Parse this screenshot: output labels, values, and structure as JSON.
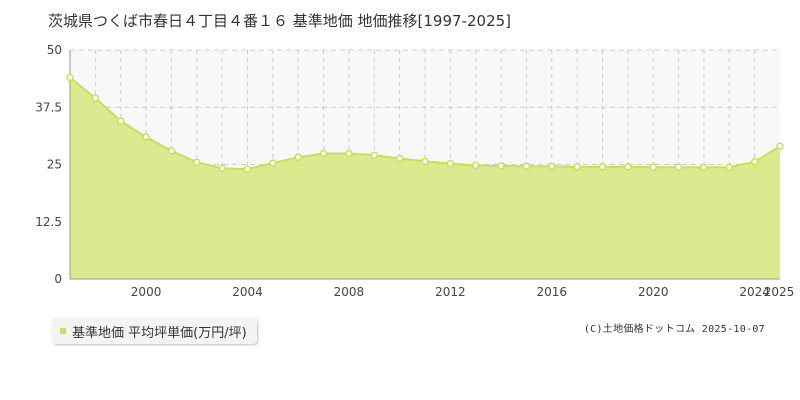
{
  "colors": {
    "fill": "#dbea8f",
    "line": "#c5df62",
    "marker_fill": "#ffffff",
    "band": "#f8f8f9",
    "grid": "#cccccc",
    "axis": "#999999"
  },
  "chart_data": {
    "type": "area",
    "title": "茨城県つくば市春日４丁目４番１６ 基準地価 地価推移[1997-2025]",
    "ylim": [
      0,
      50
    ],
    "xlim": [
      1997,
      2025
    ],
    "y_ticks": [
      "0",
      "12.5",
      "25",
      "37.5",
      "50"
    ],
    "x_ticks": [
      "2000",
      "2004",
      "2008",
      "2012",
      "2016",
      "2020",
      "2024",
      "2025"
    ],
    "grid": true,
    "legend_position": "bottom-left",
    "series": [
      {
        "name": "基準地価 平均坪単価(万円/坪)",
        "x": [
          1997,
          1998,
          1999,
          2000,
          2001,
          2002,
          2003,
          2004,
          2005,
          2006,
          2007,
          2008,
          2009,
          2010,
          2011,
          2012,
          2013,
          2014,
          2015,
          2016,
          2017,
          2018,
          2019,
          2020,
          2021,
          2022,
          2023,
          2024,
          2025
        ],
        "values": [
          44,
          39.5,
          34.5,
          31,
          28,
          25.5,
          24.2,
          24,
          25.3,
          26.6,
          27.4,
          27.4,
          27,
          26.3,
          25.7,
          25.2,
          24.8,
          24.7,
          24.6,
          24.6,
          24.5,
          24.5,
          24.5,
          24.4,
          24.4,
          24.4,
          24.4,
          25.6,
          29
        ]
      }
    ]
  },
  "legend": {
    "label": "基準地価 平均坪単価(万円/坪)"
  },
  "credit": "(C)土地価格ドットコム 2025-10-07"
}
